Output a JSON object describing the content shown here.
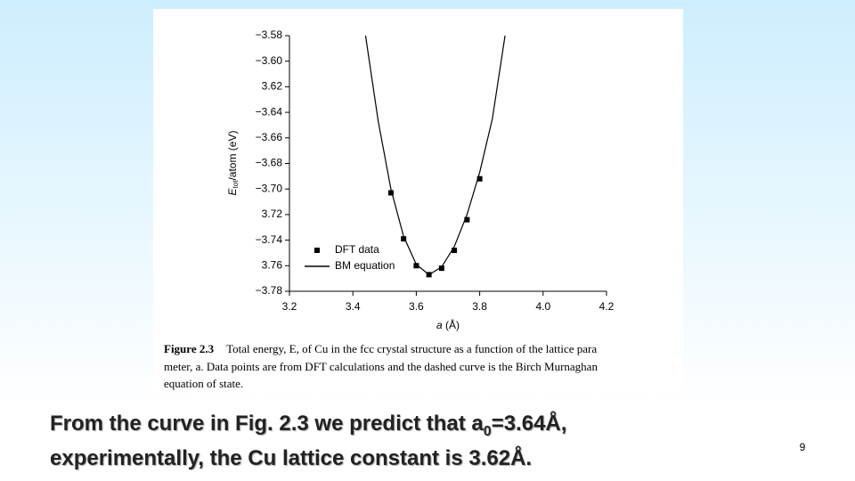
{
  "chart_data": {
    "type": "scatter",
    "xlabel": [
      "a",
      " (Å)"
    ],
    "ylabel": [
      "E",
      "tot",
      "/atom (eV)"
    ],
    "xlim": [
      3.2,
      4.2
    ],
    "xticks": [
      3.2,
      3.4,
      3.6,
      3.8,
      {
        "value": 4.0,
        "label": "4.0"
      },
      4.2
    ],
    "ylim": [
      -3.78,
      -3.58
    ],
    "yticks": [
      {
        "value": -3.58,
        "label": "−3.58"
      },
      {
        "value": -3.6,
        "label": "−3.60"
      },
      {
        "value": -3.62,
        "label": "3.62"
      },
      {
        "value": -3.64,
        "label": "−3.64"
      },
      {
        "value": -3.66,
        "label": "−3.66"
      },
      {
        "value": -3.68,
        "label": "−3.68"
      },
      {
        "value": -3.7,
        "label": "−3.70"
      },
      {
        "value": -3.72,
        "label": "3.72"
      },
      {
        "value": -3.74,
        "label": "−3.74"
      },
      {
        "value": -3.76,
        "label": "3.76"
      },
      {
        "value": -3.78,
        "label": "−3.78"
      }
    ],
    "legend": "lower-left",
    "series": [
      {
        "name": "DFT data",
        "style": "markers",
        "color": "#000000",
        "x": [
          3.52,
          3.56,
          3.6,
          3.64,
          3.68,
          3.72,
          3.76,
          3.8
        ],
        "values": [
          -3.703,
          -3.739,
          -3.76,
          -3.767,
          -3.762,
          -3.748,
          -3.724,
          -3.692
        ]
      },
      {
        "name": "BM equation",
        "style": "line",
        "color": "#000000",
        "x": [
          3.44,
          3.48,
          3.52,
          3.56,
          3.6,
          3.64,
          3.68,
          3.72,
          3.76,
          3.8,
          3.84,
          3.88
        ],
        "values": [
          -3.58,
          -3.647,
          -3.7,
          -3.737,
          -3.759,
          -3.767,
          -3.761,
          -3.745,
          -3.72,
          -3.687,
          -3.645,
          -3.58
        ]
      }
    ]
  },
  "caption": {
    "label": "Figure 2.3",
    "lines": [
      "Total energy, E, of Cu in the fcc crystal structure as a function of the lattice para",
      "meter, a. Data points are from DFT calculations and the dashed curve is the Birch   Murnaghan",
      "equation of state."
    ]
  },
  "slide_text": {
    "line1": [
      "From the curve in Fig. 2.3 we predict that a",
      "0",
      "=3.64Å,"
    ],
    "line2": "experimentally, the Cu lattice constant is 3.62Å."
  },
  "page_number": "9"
}
